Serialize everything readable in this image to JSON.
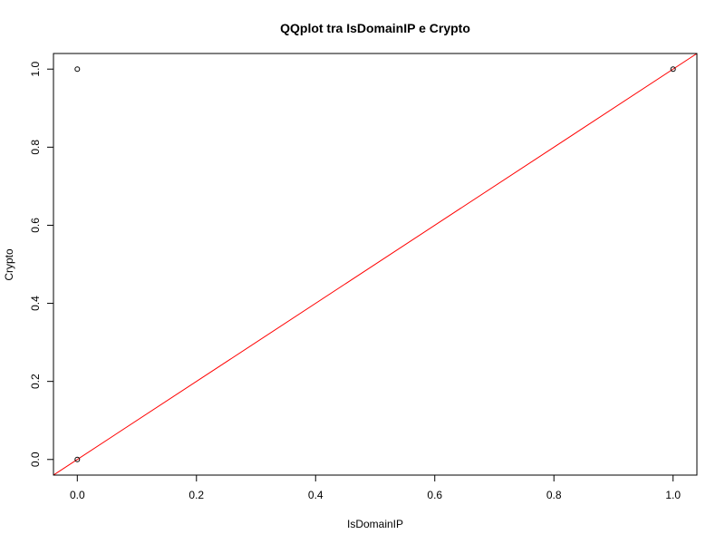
{
  "chart_data": {
    "type": "scatter",
    "title": "QQplot tra IsDomainIP e Crypto",
    "xlabel": "IsDomainIP",
    "ylabel": "Crypto",
    "xlim": [
      -0.04,
      1.04
    ],
    "ylim": [
      -0.04,
      1.04
    ],
    "x_ticks": [
      0.0,
      0.2,
      0.4,
      0.6,
      0.8,
      1.0
    ],
    "x_tick_labels": [
      "0.0",
      "0.2",
      "0.4",
      "0.6",
      "0.8",
      "1.0"
    ],
    "y_ticks": [
      0.0,
      0.2,
      0.4,
      0.6,
      0.8,
      1.0
    ],
    "y_tick_labels": [
      "0.0",
      "0.2",
      "0.4",
      "0.6",
      "0.8",
      "1.0"
    ],
    "points": [
      {
        "x": 0.0,
        "y": 1.0
      },
      {
        "x": 0.0,
        "y": 0.0
      },
      {
        "x": 1.0,
        "y": 1.0
      }
    ],
    "reference_line": {
      "intercept": 0,
      "slope": 1,
      "color": "#ff0000"
    },
    "point_color": "#000000",
    "grid": false
  }
}
